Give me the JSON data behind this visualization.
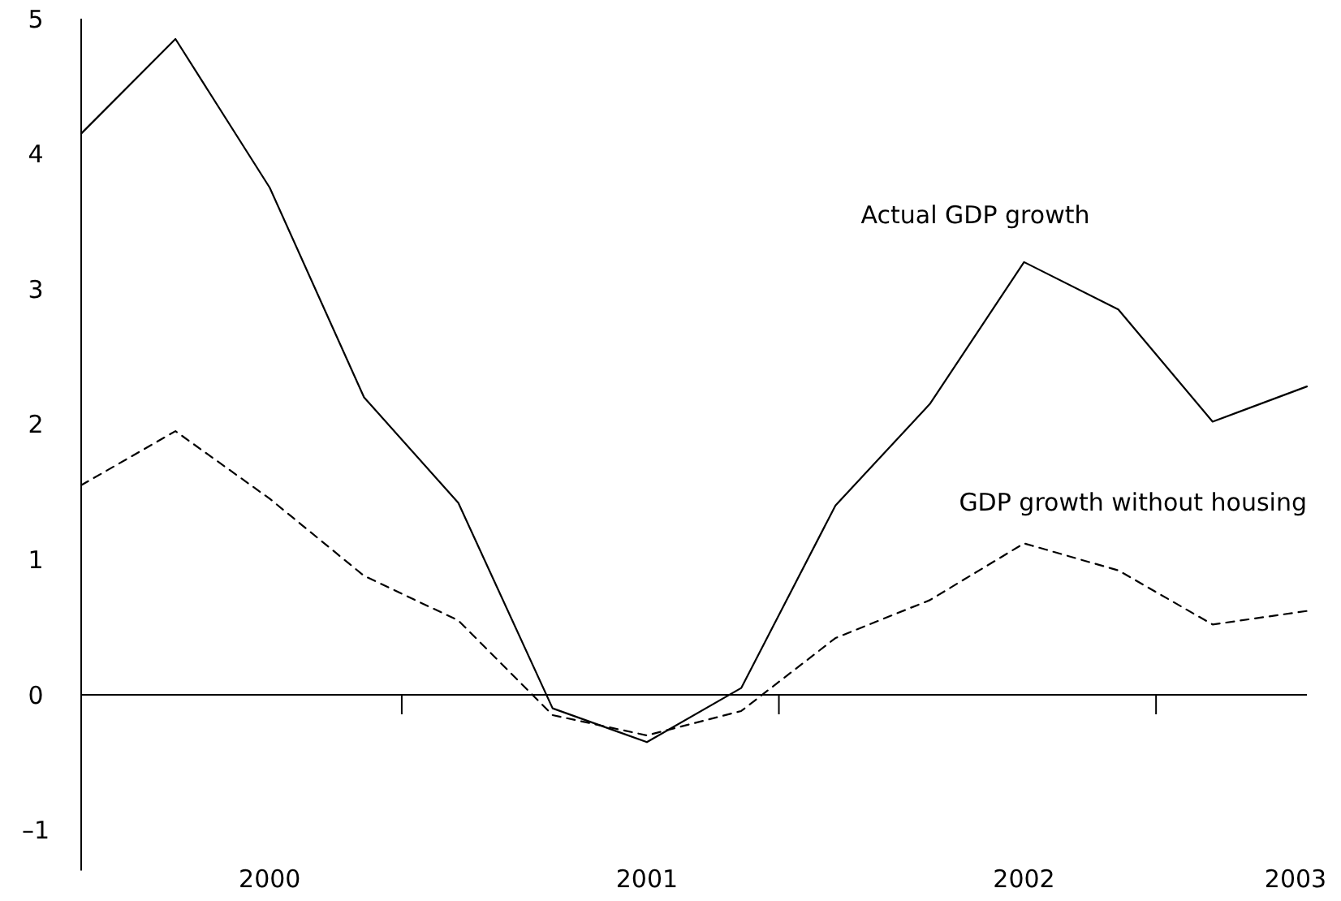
{
  "chart_data": {
    "type": "line",
    "x": [
      1999.5,
      1999.75,
      2000,
      2000.25,
      2000.5,
      2000.75,
      2001,
      2001.25,
      2001.5,
      2001.75,
      2002,
      2002.25,
      2002.5,
      2002.75
    ],
    "series": [
      {
        "name": "Actual GDP growth",
        "color": "#000000",
        "line_style": "solid",
        "values": [
          4.15,
          4.85,
          3.75,
          2.2,
          1.42,
          -0.1,
          -0.35,
          0.05,
          1.4,
          2.15,
          3.2,
          2.85,
          2.02,
          2.28
        ]
      },
      {
        "name": "GDP growth without housing",
        "color": "#000000",
        "line_style": "dashed",
        "values": [
          1.55,
          1.95,
          1.45,
          0.88,
          0.55,
          -0.15,
          -0.3,
          -0.12,
          0.42,
          0.7,
          1.12,
          0.92,
          0.52,
          0.62
        ]
      }
    ],
    "xlim": [
      1999.5,
      2002.75
    ],
    "xticks": [
      2000,
      2001,
      2002,
      {
        "value": 2002.72,
        "label": "2003"
      },
      {
        "value": 2000.35,
        "label": null
      },
      {
        "value": 2001.35,
        "label": null
      },
      {
        "value": 2002.35,
        "label": null
      }
    ],
    "ylim": [
      -1.3,
      5
    ],
    "yticks": [
      {
        "value": -1,
        "label": "–1"
      },
      0,
      1,
      2,
      3,
      4,
      5
    ],
    "marker": "none"
  }
}
